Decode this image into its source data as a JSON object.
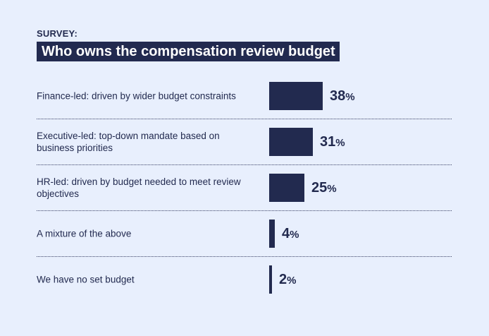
{
  "header": {
    "kicker": "SURVEY:",
    "title": "Who owns the compensation review budget"
  },
  "chart_data": {
    "type": "bar",
    "orientation": "horizontal",
    "title": "Who owns the compensation review budget",
    "categories": [
      "Finance-led: driven by wider budget constraints",
      "Executive-led: top-down mandate based on business priorities",
      "HR-led: driven by budget needed to meet review objectives",
      "A mixture of the above",
      "We have no set budget"
    ],
    "values": [
      38,
      31,
      25,
      4,
      2
    ],
    "value_suffix": "%",
    "unit_label": "%",
    "colors": {
      "bar": "#222a4f",
      "background": "#e8effd",
      "text": "#222a4f",
      "title_text": "#ffffff"
    }
  }
}
